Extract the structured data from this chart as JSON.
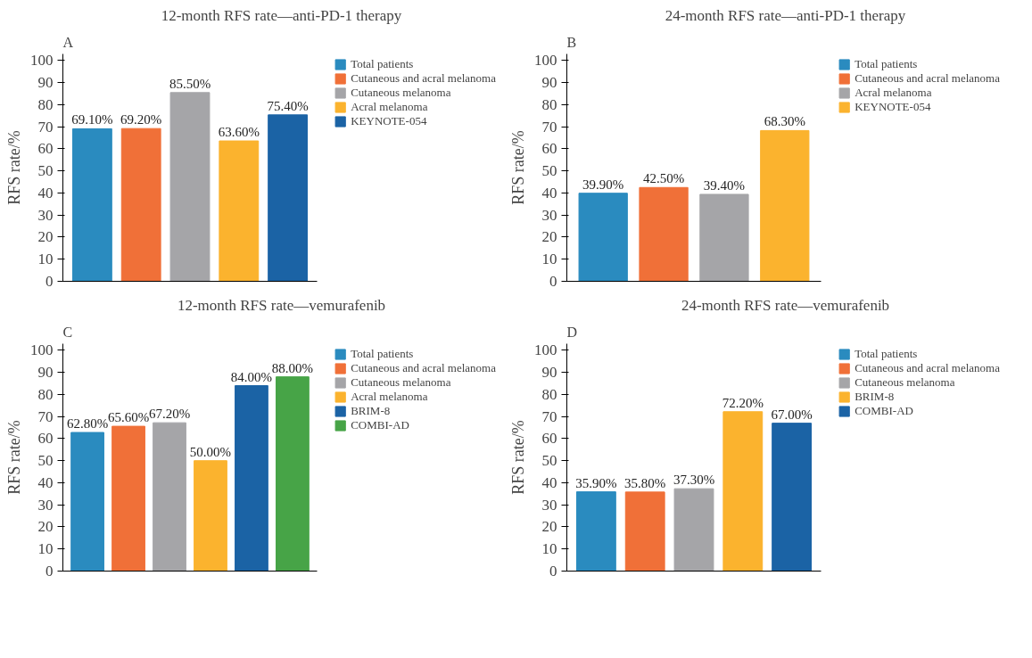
{
  "chart_data": [
    {
      "type": "bar",
      "title": "12-month RFS rate—anti-PD-1 therapy",
      "ylabel": "RFS rate/%",
      "annotations": [
        "A"
      ],
      "categories": [
        null,
        null,
        null,
        null,
        null
      ],
      "ylim": [
        0,
        103
      ],
      "yticks": [
        0,
        10,
        20,
        30,
        40,
        50,
        60,
        70,
        80,
        90,
        100
      ],
      "grid": false,
      "legend": "right",
      "tick_labels": "y",
      "series": [
        {
          "name": "Total patients",
          "color": "#2a8bbf",
          "values": [
            69.1,
            null,
            null,
            null,
            null
          ],
          "value_labels": [
            "69.10%",
            null,
            null,
            null,
            null
          ]
        },
        {
          "name": "Cutaneous and acral melanoma",
          "color": "#f07038",
          "values": [
            null,
            69.2,
            null,
            null,
            null
          ],
          "value_labels": [
            null,
            "69.20%",
            null,
            null,
            null
          ]
        },
        {
          "name": "Cutaneous melanoma",
          "color": "#a5a5a8",
          "values": [
            null,
            null,
            85.5,
            null,
            null
          ],
          "value_labels": [
            null,
            null,
            "85.50%",
            null,
            null
          ]
        },
        {
          "name": "Acral melanoma",
          "color": "#fbb32e",
          "values": [
            null,
            null,
            null,
            63.6,
            null
          ],
          "value_labels": [
            null,
            null,
            null,
            "63.60%",
            null
          ]
        },
        {
          "name": "KEYNOTE-054",
          "color": "#1b63a5",
          "values": [
            null,
            null,
            null,
            null,
            75.4
          ],
          "value_labels": [
            null,
            null,
            null,
            null,
            "75.40%"
          ]
        }
      ]
    },
    {
      "type": "bar",
      "title": "24-month RFS rate—anti-PD-1 therapy",
      "ylabel": "RFS rate/%",
      "annotations": [
        "B"
      ],
      "categories": [
        null,
        null,
        null,
        null
      ],
      "ylim": [
        0,
        103
      ],
      "yticks": [
        0,
        10,
        20,
        30,
        40,
        50,
        60,
        70,
        80,
        90,
        100
      ],
      "grid": false,
      "legend": "right",
      "tick_labels": "y",
      "series": [
        {
          "name": "Total patients",
          "color": "#2a8bbf",
          "values": [
            39.9,
            null,
            null,
            null
          ],
          "value_labels": [
            "39.90%",
            null,
            null,
            null
          ]
        },
        {
          "name": "Cutaneous and acral melanoma",
          "color": "#f07038",
          "values": [
            null,
            42.5,
            null,
            null
          ],
          "value_labels": [
            null,
            "42.50%",
            null,
            null
          ]
        },
        {
          "name": "Acral melanoma",
          "color": "#a5a5a8",
          "values": [
            null,
            null,
            39.4,
            null
          ],
          "value_labels": [
            null,
            null,
            "39.40%",
            null
          ]
        },
        {
          "name": "KEYNOTE-054",
          "color": "#fbb32e",
          "values": [
            null,
            null,
            null,
            68.3
          ],
          "value_labels": [
            null,
            null,
            null,
            "68.30%"
          ]
        }
      ]
    },
    {
      "type": "bar",
      "title": "12-month RFS rate—vemurafenib",
      "ylabel": "RFS rate/%",
      "annotations": [
        "C"
      ],
      "categories": [
        null,
        null,
        null,
        null,
        null,
        null
      ],
      "ylim": [
        0,
        103
      ],
      "yticks": [
        0,
        10,
        20,
        30,
        40,
        50,
        60,
        70,
        80,
        90,
        100
      ],
      "grid": false,
      "legend": "right",
      "tick_labels": "y",
      "series": [
        {
          "name": "Total patients",
          "color": "#2a8bbf",
          "values": [
            62.8,
            null,
            null,
            null,
            null,
            null
          ],
          "value_labels": [
            "62.80%",
            null,
            null,
            null,
            null,
            null
          ]
        },
        {
          "name": "Cutaneous and acral melanoma",
          "color": "#f07038",
          "values": [
            null,
            65.6,
            null,
            null,
            null,
            null
          ],
          "value_labels": [
            null,
            "65.60%",
            null,
            null,
            null,
            null
          ]
        },
        {
          "name": "Cutaneous melanoma",
          "color": "#a5a5a8",
          "values": [
            null,
            null,
            67.2,
            null,
            null,
            null
          ],
          "value_labels": [
            null,
            null,
            "67.20%",
            null,
            null,
            null
          ]
        },
        {
          "name": "Acral melanoma",
          "color": "#fbb32e",
          "values": [
            null,
            null,
            null,
            50.0,
            null,
            null
          ],
          "value_labels": [
            null,
            null,
            null,
            "50.00%",
            null,
            null
          ]
        },
        {
          "name": "BRIM-8",
          "color": "#1b63a5",
          "values": [
            null,
            null,
            null,
            null,
            84.0,
            null
          ],
          "value_labels": [
            null,
            null,
            null,
            null,
            "84.00%",
            null
          ]
        },
        {
          "name": "COMBI-AD",
          "color": "#47a447",
          "values": [
            null,
            null,
            null,
            null,
            null,
            88.0
          ],
          "value_labels": [
            null,
            null,
            null,
            null,
            null,
            "88.00%"
          ]
        }
      ]
    },
    {
      "type": "bar",
      "title": "24-month RFS rate—vemurafenib",
      "ylabel": "RFS rate/%",
      "annotations": [
        "D"
      ],
      "categories": [
        null,
        null,
        null,
        null,
        null
      ],
      "ylim": [
        0,
        103
      ],
      "yticks": [
        0,
        10,
        20,
        30,
        40,
        50,
        60,
        70,
        80,
        90,
        100
      ],
      "grid": false,
      "legend": "right",
      "tick_labels": "y",
      "series": [
        {
          "name": "Total patients",
          "color": "#2a8bbf",
          "values": [
            35.9,
            null,
            null,
            null,
            null
          ],
          "value_labels": [
            "35.90%",
            null,
            null,
            null,
            null
          ]
        },
        {
          "name": "Cutaneous and acral melanoma",
          "color": "#f07038",
          "values": [
            null,
            35.8,
            null,
            null,
            null
          ],
          "value_labels": [
            null,
            "35.80%",
            null,
            null,
            null
          ]
        },
        {
          "name": "Cutaneous melanoma",
          "color": "#a5a5a8",
          "values": [
            null,
            null,
            37.3,
            null,
            null
          ],
          "value_labels": [
            null,
            null,
            "37.30%",
            null,
            null
          ]
        },
        {
          "name": "BRIM-8",
          "color": "#fbb32e",
          "values": [
            null,
            null,
            null,
            72.2,
            null
          ],
          "value_labels": [
            null,
            null,
            null,
            "72.20%",
            null
          ]
        },
        {
          "name": "COMBI-AD",
          "color": "#1b63a5",
          "values": [
            null,
            null,
            null,
            null,
            67.0
          ],
          "value_labels": [
            null,
            null,
            null,
            null,
            "67.00%"
          ]
        }
      ]
    }
  ]
}
